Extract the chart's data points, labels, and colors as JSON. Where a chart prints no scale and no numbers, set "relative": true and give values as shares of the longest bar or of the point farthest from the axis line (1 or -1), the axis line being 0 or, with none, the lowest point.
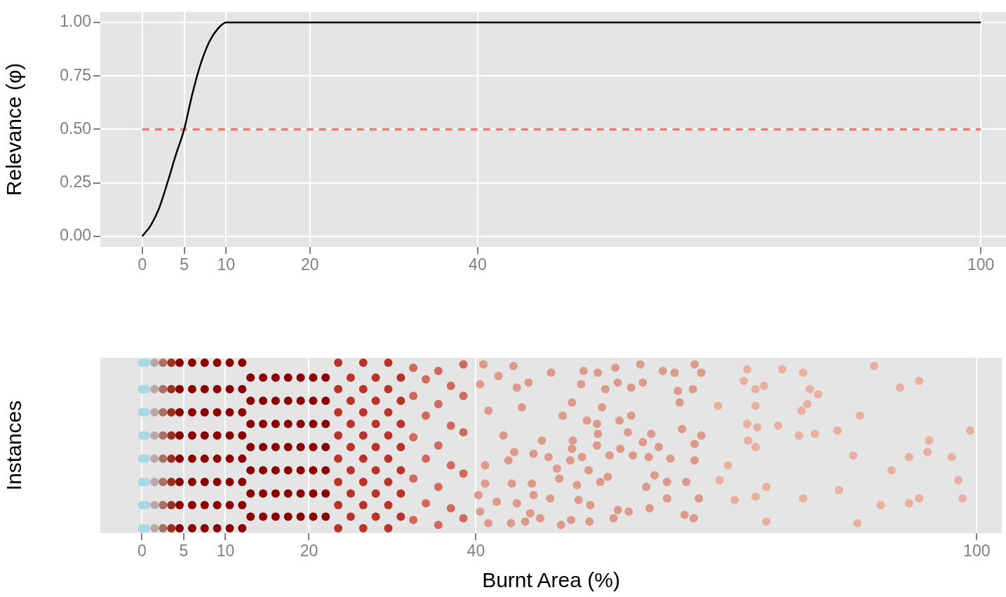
{
  "chart_data": [
    {
      "type": "line",
      "ylabel": "Relevance (φ)",
      "xlim": [
        -5,
        103
      ],
      "ylim": [
        -0.05,
        1.05
      ],
      "xticks": [
        0,
        5,
        10,
        20,
        40,
        100
      ],
      "yticks": [
        {
          "value": 0,
          "label": "0.00"
        },
        {
          "value": 0.25,
          "label": "0.25"
        },
        {
          "value": 0.5,
          "label": "0.50"
        },
        {
          "value": 0.75,
          "label": "0.75"
        },
        {
          "value": 1,
          "label": "1.00"
        }
      ],
      "grid": true,
      "legend": false,
      "marker": "none",
      "series": [
        {
          "color": "#000000",
          "x": [
            0,
            1,
            2,
            3,
            4,
            5,
            6,
            7,
            8,
            9,
            10,
            100
          ],
          "values": [
            0,
            0.05,
            0.13,
            0.25,
            0.38,
            0.5,
            0.67,
            0.81,
            0.91,
            0.97,
            1,
            1
          ]
        },
        {
          "color": "#f8766d",
          "line_style": "dashed",
          "x": [
            0,
            100
          ],
          "values": [
            0.5,
            0.5
          ]
        }
      ]
    },
    {
      "type": "scatter",
      "xlabel": "Burnt Area (%)",
      "ylabel": "Instances",
      "relative": true,
      "xlim": [
        -5,
        103
      ],
      "xticks": [
        0,
        5,
        10,
        20,
        40,
        100
      ],
      "grid": "x",
      "legend": false,
      "marker": "circle",
      "series": [
        {
          "color": "#a8d8e6",
          "x": [
            0,
            0,
            0,
            0,
            0,
            0,
            0,
            0,
            0.5,
            0.5,
            0.5,
            0.5,
            0.5,
            0.5,
            0.5,
            0.5
          ],
          "values": [
            0,
            0.14,
            0.28,
            0.42,
            0.56,
            0.7,
            0.84,
            1,
            0,
            0.14,
            0.28,
            0.42,
            0.56,
            0.7,
            0.84,
            1
          ]
        },
        {
          "color": "#b8a8a6",
          "x": [
            1.5,
            1.5,
            1.5,
            1.5,
            1.5,
            1.5,
            1.5,
            1.5
          ],
          "values": [
            0,
            0.14,
            0.28,
            0.42,
            0.56,
            0.7,
            0.84,
            1
          ]
        },
        {
          "color": "#a87060",
          "x": [
            2.5,
            2.5,
            2.5,
            2.5,
            2.5,
            2.5,
            2.5,
            2.5
          ],
          "values": [
            0,
            0.14,
            0.28,
            0.42,
            0.56,
            0.7,
            0.84,
            1
          ]
        },
        {
          "color": "#983020",
          "x": [
            3.5,
            3.5,
            3.5,
            3.5,
            3.5,
            3.5,
            3.5,
            3.5
          ],
          "values": [
            0,
            0.14,
            0.28,
            0.42,
            0.56,
            0.7,
            0.84,
            1
          ]
        },
        {
          "color": "#8b0000",
          "x": [
            4.5,
            4.5,
            4.5,
            4.5,
            4.5,
            4.5,
            4.5,
            4.5,
            6,
            6,
            6,
            6,
            6,
            6,
            6,
            6,
            7.5,
            7.5,
            7.5,
            7.5,
            7.5,
            7.5,
            7.5,
            7.5,
            9,
            9,
            9,
            9,
            9,
            9,
            9,
            9,
            10.5,
            10.5,
            10.5,
            10.5,
            10.5,
            10.5,
            10.5,
            10.5,
            12,
            12,
            12,
            12,
            12,
            12,
            12,
            12,
            13,
            13,
            13,
            13,
            13,
            13,
            13,
            14.5,
            14.5,
            14.5,
            14.5,
            14.5,
            14.5,
            14.5,
            16,
            16,
            16,
            16,
            16,
            16,
            16,
            17.5,
            17.5,
            17.5,
            17.5,
            17.5,
            17.5,
            17.5,
            19,
            19,
            19,
            19,
            19,
            19,
            19,
            20.5,
            20.5,
            20.5,
            20.5,
            20.5,
            20.5,
            20.5,
            22,
            22,
            22,
            22,
            22,
            22,
            22
          ],
          "values": [
            0,
            0.14,
            0.28,
            0.42,
            0.56,
            0.7,
            0.84,
            1,
            0,
            0.14,
            0.28,
            0.42,
            0.56,
            0.7,
            0.84,
            1,
            0,
            0.14,
            0.28,
            0.42,
            0.56,
            0.7,
            0.84,
            1,
            0,
            0.14,
            0.28,
            0.42,
            0.56,
            0.7,
            0.84,
            1,
            0,
            0.14,
            0.28,
            0.42,
            0.56,
            0.7,
            0.84,
            1,
            0,
            0.14,
            0.28,
            0.42,
            0.56,
            0.7,
            0.84,
            1,
            0.07,
            0.21,
            0.35,
            0.49,
            0.63,
            0.77,
            0.91,
            0.07,
            0.21,
            0.35,
            0.49,
            0.63,
            0.77,
            0.91,
            0.07,
            0.21,
            0.35,
            0.49,
            0.63,
            0.77,
            0.91,
            0.07,
            0.21,
            0.35,
            0.49,
            0.63,
            0.77,
            0.91,
            0.07,
            0.21,
            0.35,
            0.49,
            0.63,
            0.77,
            0.91,
            0.07,
            0.21,
            0.35,
            0.49,
            0.63,
            0.77,
            0.91,
            0.07,
            0.21,
            0.35,
            0.49,
            0.63,
            0.77,
            0.91
          ]
        },
        {
          "color": "#b8332a",
          "x": [
            23.5,
            23.5,
            23.5,
            23.5,
            23.5,
            23.5,
            23.5,
            23.5,
            25,
            25,
            25,
            25,
            25,
            25,
            25,
            26.5,
            26.5,
            26.5,
            26.5,
            26.5,
            26.5,
            26.5,
            26.5,
            28,
            28,
            28,
            28,
            28,
            28,
            28,
            29.5,
            29.5,
            29.5,
            29.5,
            29.5,
            29.5,
            29.5,
            29.5,
            31,
            31,
            31,
            31,
            31,
            31,
            31
          ],
          "values": [
            0,
            0.14,
            0.28,
            0.42,
            0.56,
            0.7,
            0.84,
            1,
            0.07,
            0.21,
            0.35,
            0.49,
            0.63,
            0.77,
            0.91,
            0,
            0.14,
            0.28,
            0.42,
            0.56,
            0.7,
            0.84,
            1,
            0.07,
            0.21,
            0.35,
            0.49,
            0.63,
            0.77,
            0.91,
            0,
            0.14,
            0.28,
            0.42,
            0.56,
            0.7,
            0.84,
            1,
            0.07,
            0.21,
            0.35,
            0.49,
            0.63,
            0.77,
            0.91
          ]
        },
        {
          "color": "#cf6a5c",
          "x": [
            32.5,
            32.5,
            32.5,
            32.5,
            32.5,
            34,
            34,
            34,
            34,
            35.5,
            35.5,
            35.5,
            35.5,
            35.5,
            37,
            37,
            37,
            37,
            38.5,
            38.5,
            38.5,
            38.5,
            38.5
          ],
          "values": [
            0.05,
            0.3,
            0.55,
            0.8,
            0.97,
            0.15,
            0.42,
            0.68,
            0.9,
            0.02,
            0.25,
            0.5,
            0.75,
            0.95,
            0.12,
            0.38,
            0.62,
            0.86,
            0.06,
            0.33,
            0.58,
            0.8,
            0.99
          ]
        },
        {
          "color": "#dd9a8a",
          "x": [
            40.9,
            42.7,
            44.5,
            49.0,
            52.9,
            54.6,
            56.7,
            59.7,
            62.4,
            66.2,
            67.0,
            63.8,
            57.0,
            60.0,
            58.6,
            66.0,
            64.2,
            52.6,
            46.3,
            44.9,
            40.5,
            55.5,
            64.4,
            51.5,
            55.1,
            45.5,
            41.5,
            57.2,
            58.6,
            53.3,
            54.5,
            50.4,
            64.7,
            67.0,
            61.0,
            58.2,
            54.6,
            43.3,
            47.9,
            51.6,
            60.0,
            66.2,
            61.9,
            57.3,
            54.5,
            51.5,
            44.6,
            48.7,
            46.9,
            52.7,
            56.0,
            58.8,
            60.7,
            63.3,
            66.2,
            51.3,
            43.9,
            41.1,
            49.7,
            53.5,
            61.4,
            50.0,
            55.8,
            41.1,
            44.3,
            46.7,
            52.1,
            54.9,
            60.4,
            62.9,
            65.2,
            40.3,
            46.9,
            48.9,
            52.3,
            42.5,
            44.9,
            53.7,
            62.9,
            66.7,
            46.5,
            57.0,
            58.3,
            60.8,
            40.5,
            41.5,
            44.2,
            45.9,
            47.7,
            50.2,
            51.4,
            53.6,
            56.5,
            65.0,
            66.1
          ],
          "values": [
            0.99,
            0.92,
            0.98,
            0.94,
            0.95,
            0.94,
            0.97,
            0.99,
            0.95,
            0.99,
            0.94,
            0.94,
            0.88,
            0.88,
            0.85,
            0.84,
            0.83,
            0.87,
            0.88,
            0.85,
            0.87,
            0.84,
            0.76,
            0.76,
            0.73,
            0.73,
            0.71,
            0.65,
            0.68,
            0.65,
            0.63,
            0.68,
            0.6,
            0.56,
            0.57,
            0.58,
            0.57,
            0.56,
            0.53,
            0.53,
            0.52,
            0.51,
            0.49,
            0.48,
            0.5,
            0.48,
            0.46,
            0.43,
            0.45,
            0.43,
            0.44,
            0.44,
            0.43,
            0.42,
            0.41,
            0.41,
            0.41,
            0.38,
            0.36,
            0.35,
            0.32,
            0.3,
            0.31,
            0.27,
            0.27,
            0.27,
            0.26,
            0.28,
            0.25,
            0.28,
            0.28,
            0.2,
            0.2,
            0.18,
            0.17,
            0.16,
            0.15,
            0.14,
            0.18,
            0.18,
            0.09,
            0.11,
            0.1,
            0.12,
            0.1,
            0.03,
            0.03,
            0.04,
            0.06,
            0.02,
            0.05,
            0.04,
            0.06,
            0.08,
            0.06
          ]
        },
        {
          "color": "#e9b0a0",
          "x": [
            72.5,
            76.7,
            79.2,
            87.7,
            93.1,
            90.8,
            72.1,
            74.5,
            73.5,
            80.0,
            81.0,
            79.7,
            79.0,
            86.0,
            73.5,
            69.0,
            72.5,
            73.7,
            76.2,
            78.7,
            80.6,
            83.3,
            99.2,
            94.3,
            72.6,
            73.5,
            85.2,
            91.9,
            94.1,
            97.0,
            89.8,
            97.8,
            70.2,
            69.2,
            74.8,
            83.5,
            71.0,
            73.5,
            79.2,
            88.5,
            91.9,
            93.1,
            98.3,
            74.8,
            85.7
          ],
          "values": [
            0.96,
            0.96,
            0.94,
            0.98,
            0.89,
            0.85,
            0.89,
            0.86,
            0.84,
            0.84,
            0.81,
            0.75,
            0.71,
            0.68,
            0.74,
            0.74,
            0.63,
            0.61,
            0.62,
            0.56,
            0.57,
            0.59,
            0.59,
            0.53,
            0.53,
            0.49,
            0.44,
            0.43,
            0.46,
            0.43,
            0.35,
            0.29,
            0.38,
            0.29,
            0.25,
            0.23,
            0.17,
            0.19,
            0.18,
            0.14,
            0.15,
            0.18,
            0.18,
            0.04,
            0.03
          ]
        }
      ]
    }
  ]
}
